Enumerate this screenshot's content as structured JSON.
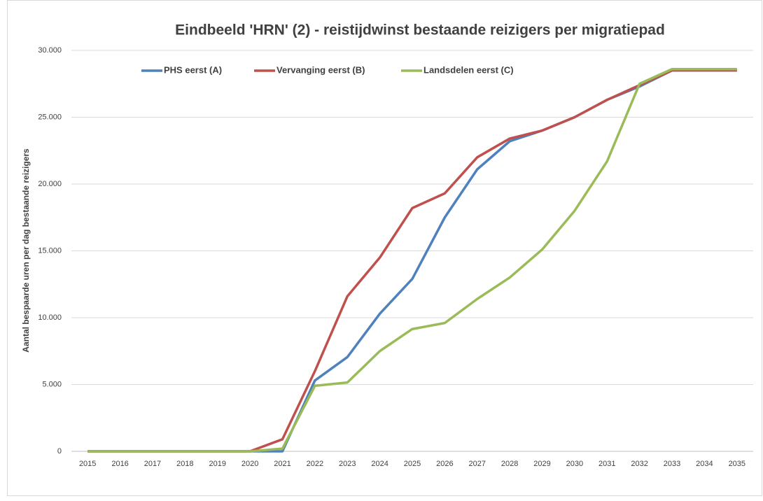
{
  "chart_data": {
    "type": "line",
    "title": "Eindbeeld 'HRN' (2) - reistijdwinst bestaande reizigers per migratiepad",
    "ylabel": "Aantal bespaarde uren per dag bestaande reizigers",
    "categories": [
      "2015",
      "2016",
      "2017",
      "2018",
      "2019",
      "2020",
      "2021",
      "2022",
      "2023",
      "2024",
      "2025",
      "2026",
      "2027",
      "2028",
      "2029",
      "2030",
      "2031",
      "2032",
      "2033",
      "2034",
      "2035"
    ],
    "series": [
      {
        "name": "PHS eerst (A)",
        "color": "#4f81bd",
        "values": [
          0,
          0,
          0,
          0,
          0,
          0,
          0,
          5300,
          7050,
          10300,
          12900,
          17500,
          21100,
          23200,
          24000,
          25000,
          26300,
          27300,
          28500,
          28500,
          28500
        ]
      },
      {
        "name": "Vervanging eerst (B)",
        "color": "#c0504d",
        "values": [
          0,
          0,
          0,
          0,
          0,
          0,
          900,
          6000,
          11600,
          14500,
          18200,
          19300,
          22000,
          23400,
          24000,
          25000,
          26300,
          27400,
          28500,
          28500,
          28500
        ]
      },
      {
        "name": "Landsdelen eerst (C)",
        "color": "#9bbb59",
        "values": [
          0,
          0,
          0,
          0,
          0,
          0,
          200,
          4900,
          5150,
          7500,
          9150,
          9600,
          11400,
          13000,
          15100,
          18000,
          21700,
          27500,
          28600,
          28600,
          28600
        ]
      }
    ],
    "ylim": [
      0,
      30000
    ],
    "yticks": [
      0,
      {
        "value": 5000,
        "label": "5.000"
      },
      {
        "value": 10000,
        "label": "10.000"
      },
      {
        "value": 15000,
        "label": "15.000"
      },
      {
        "value": 20000,
        "label": "20.000"
      },
      {
        "value": 25000,
        "label": "25.000"
      },
      {
        "value": 30000,
        "label": "30.000"
      }
    ],
    "grid": true,
    "legend": "top"
  }
}
